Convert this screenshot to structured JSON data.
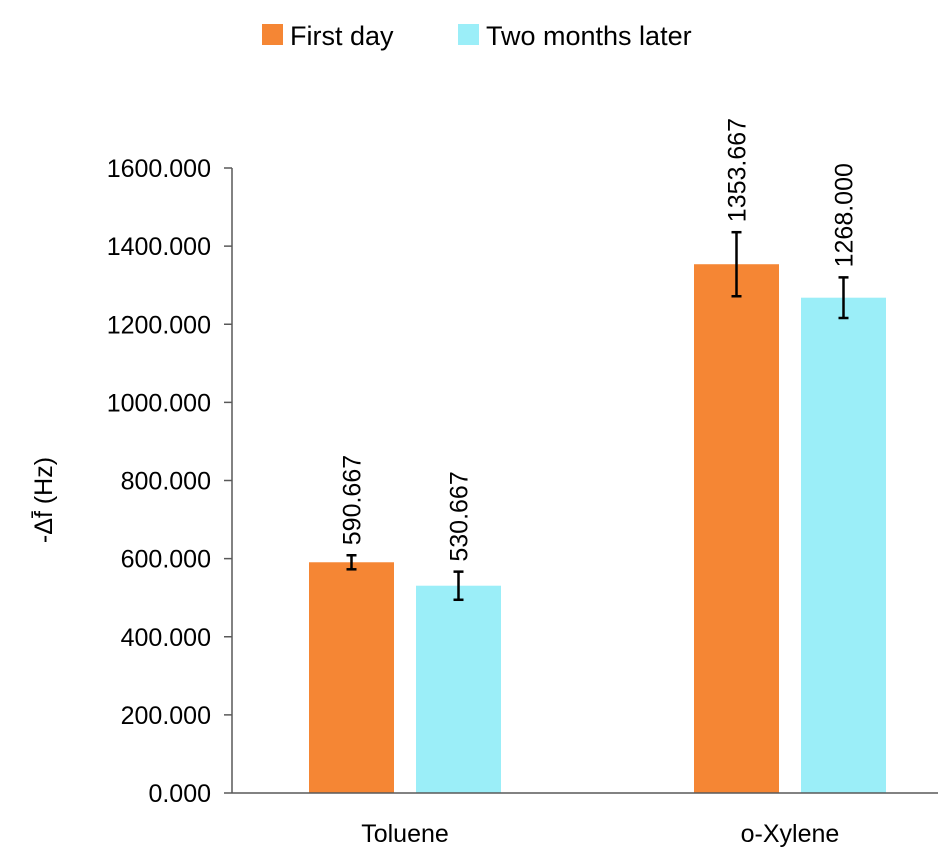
{
  "chart_data": {
    "type": "bar",
    "categories": [
      "Toluene",
      "o-Xylene"
    ],
    "series": [
      {
        "name": "First day",
        "color": "#F58634",
        "values": [
          590.667,
          1353.667
        ],
        "value_labels": [
          "590.667",
          "1353.667"
        ],
        "error": [
          18,
          82
        ]
      },
      {
        "name": "Two months later",
        "color": "#9BEEF8",
        "values": [
          530.667,
          1268.0
        ],
        "value_labels": [
          "530.667",
          "1268.000"
        ],
        "error": [
          36,
          52
        ]
      }
    ],
    "ylabel": "-Δf̄ (Hz)",
    "xlabel": "",
    "ylim": [
      0,
      1600
    ],
    "yticks": [
      0,
      200,
      400,
      600,
      800,
      1000,
      1200,
      1400,
      1600
    ],
    "ytick_labels": [
      "0.000",
      "200.000",
      "400.000",
      "600.000",
      "800.000",
      "1000.000",
      "1200.000",
      "1400.000",
      "1600.000"
    ],
    "grid": false,
    "legend_position": "top-center"
  }
}
